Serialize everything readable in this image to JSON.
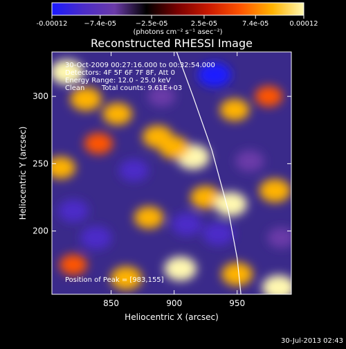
{
  "chart_data": {
    "type": "heatmap",
    "title": "Reconstructed RHESSI Image",
    "xlabel": "Heliocentric X (arcsec)",
    "ylabel": "Heliocentric Y (arcsec)",
    "xlim": [
      803,
      993
    ],
    "ylim": [
      153,
      333
    ],
    "x_ticks": [
      "850",
      "900",
      "950"
    ],
    "x_tick_values": [
      850,
      900,
      950
    ],
    "y_ticks": [
      "200",
      "250",
      "300"
    ],
    "y_tick_values": [
      200,
      250,
      300
    ],
    "colorbar": {
      "range": [
        -0.00012,
        0.00012
      ],
      "tick_labels": [
        "-0.00012",
        "−7.4e-05",
        "−2.5e-05",
        "2.5e-05",
        "7.4e-05",
        "0.00012"
      ],
      "tick_values": [
        -0.00012,
        -7.4e-05,
        -2.5e-05,
        2.5e-05,
        7.4e-05,
        0.00012
      ],
      "units": "(photons cm⁻² s⁻¹ asec⁻²)",
      "colors": [
        "#1a1aff",
        "#4b2cc8",
        "#6a3aa8",
        "#000000",
        "#7a0000",
        "#cc1a00",
        "#ff5500",
        "#ffb300",
        "#fff8b0"
      ]
    },
    "annotations": [
      "30-Oct-2009 00:27:16.000 to 00:32:54.000",
      "Detectors: 4F 5F 6F 7F 8F, Att 0",
      "Energy Range: 12.0 - 25.0 keV",
      "Clean",
      "Total counts: 9.61E+03",
      "Position of Peak = [983,155]"
    ],
    "limb_curve": [
      [
        902,
        333
      ],
      [
        915,
        300
      ],
      [
        930,
        260
      ],
      [
        943,
        215
      ],
      [
        950,
        180
      ],
      [
        953,
        153
      ]
    ],
    "blobs": [
      {
        "x": 815,
        "y": 318,
        "value": 0.00012
      },
      {
        "x": 830,
        "y": 298,
        "value": 0.0001
      },
      {
        "x": 855,
        "y": 287,
        "value": 8e-05
      },
      {
        "x": 840,
        "y": 265,
        "value": 7e-05
      },
      {
        "x": 810,
        "y": 247,
        "value": 8e-05
      },
      {
        "x": 887,
        "y": 270,
        "value": 9e-05
      },
      {
        "x": 915,
        "y": 255,
        "value": 0.00012
      },
      {
        "x": 900,
        "y": 262,
        "value": 9e-05
      },
      {
        "x": 925,
        "y": 225,
        "value": 9e-05
      },
      {
        "x": 945,
        "y": 220,
        "value": 0.00011
      },
      {
        "x": 948,
        "y": 290,
        "value": 8e-05
      },
      {
        "x": 980,
        "y": 230,
        "value": 0.0001
      },
      {
        "x": 975,
        "y": 300,
        "value": 6e-05
      },
      {
        "x": 820,
        "y": 175,
        "value": 6e-05
      },
      {
        "x": 862,
        "y": 165,
        "value": 0.0001
      },
      {
        "x": 905,
        "y": 172,
        "value": 0.00011
      },
      {
        "x": 950,
        "y": 168,
        "value": 0.0001
      },
      {
        "x": 983,
        "y": 158,
        "value": 0.00012
      },
      {
        "x": 880,
        "y": 210,
        "value": 8e-05
      },
      {
        "x": 868,
        "y": 245,
        "value": -8e-05
      },
      {
        "x": 820,
        "y": 215,
        "value": -9e-05
      },
      {
        "x": 838,
        "y": 195,
        "value": -0.0001
      },
      {
        "x": 910,
        "y": 205,
        "value": -9e-05
      },
      {
        "x": 935,
        "y": 198,
        "value": -0.0001
      },
      {
        "x": 932,
        "y": 316,
        "value": -0.00012
      },
      {
        "x": 960,
        "y": 252,
        "value": -7e-05
      },
      {
        "x": 985,
        "y": 195,
        "value": -6e-05
      },
      {
        "x": 890,
        "y": 300,
        "value": -6e-05
      }
    ]
  },
  "footer": {
    "timestamp": "30-Jul-2013 02:43"
  }
}
